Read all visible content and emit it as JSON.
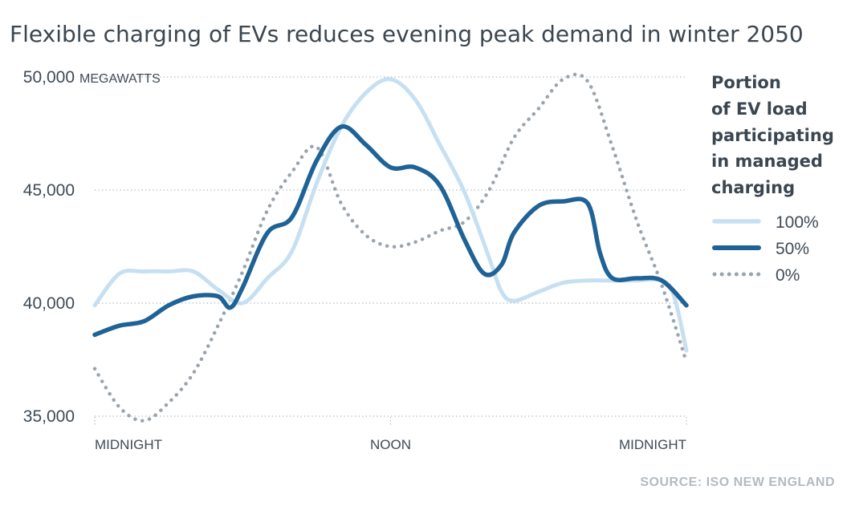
{
  "colors": {
    "series_100": "#c6e0f2",
    "series_50": "#1f6396",
    "series_0": "#9aa4ad",
    "grid": "#b8bec4",
    "text": "#3f4a55",
    "source": "#b3bac1"
  },
  "chart_data": {
    "type": "line",
    "title": "Flexible charging of EVs reduces evening peak demand in winter 2050",
    "ylabel": "",
    "y_unit": "MEGAWATTS",
    "ylim": [
      35000,
      50000
    ],
    "yticks": [
      {
        "value": 50000,
        "label": "50,000"
      },
      {
        "value": 45000,
        "label": "45,000"
      },
      {
        "value": 40000,
        "label": "40,000"
      },
      {
        "value": 35000,
        "label": "35,000"
      }
    ],
    "xlim": [
      0,
      24
    ],
    "xticks": [
      {
        "value": 0,
        "label": "MIDNIGHT"
      },
      {
        "value": 12,
        "label": "NOON"
      },
      {
        "value": 24,
        "label": "MIDNIGHT"
      }
    ],
    "grid": "horizontal dotted",
    "legend_title": "Portion of EV load participating in managed charging",
    "legend_title_lines": [
      "Portion",
      "of EV load",
      "participating",
      "in managed",
      "charging"
    ],
    "legend_position": "right",
    "series": [
      {
        "name": "100%",
        "style": "solid-light",
        "points": [
          [
            0,
            39900
          ],
          [
            1,
            41300
          ],
          [
            2,
            41400
          ],
          [
            3,
            41400
          ],
          [
            4,
            41400
          ],
          [
            5,
            40600
          ],
          [
            6,
            40000
          ],
          [
            7,
            41100
          ],
          [
            8,
            42300
          ],
          [
            9,
            45300
          ],
          [
            10,
            47800
          ],
          [
            11,
            49300
          ],
          [
            12,
            49900
          ],
          [
            13,
            49000
          ],
          [
            14,
            47000
          ],
          [
            15,
            44900
          ],
          [
            16,
            42000
          ],
          [
            16.5,
            40500
          ],
          [
            17,
            40100
          ],
          [
            18,
            40500
          ],
          [
            19,
            40900
          ],
          [
            20,
            41000
          ],
          [
            21,
            41000
          ],
          [
            22,
            41000
          ],
          [
            23,
            41000
          ],
          [
            23.5,
            40300
          ],
          [
            24,
            37900
          ]
        ]
      },
      {
        "name": "50%",
        "style": "solid-dark",
        "points": [
          [
            0,
            38600
          ],
          [
            1,
            39000
          ],
          [
            2,
            39200
          ],
          [
            3,
            39900
          ],
          [
            4,
            40300
          ],
          [
            5,
            40300
          ],
          [
            5.5,
            39800
          ],
          [
            6,
            40700
          ],
          [
            7,
            43100
          ],
          [
            8,
            43800
          ],
          [
            9,
            46300
          ],
          [
            10,
            47800
          ],
          [
            11,
            47000
          ],
          [
            12,
            46000
          ],
          [
            13,
            46000
          ],
          [
            14,
            45200
          ],
          [
            15,
            42800
          ],
          [
            15.8,
            41300
          ],
          [
            16.5,
            41700
          ],
          [
            17,
            43100
          ],
          [
            18,
            44300
          ],
          [
            19,
            44500
          ],
          [
            20,
            44400
          ],
          [
            20.5,
            42200
          ],
          [
            21,
            41100
          ],
          [
            22,
            41100
          ],
          [
            23,
            41000
          ],
          [
            24,
            39900
          ]
        ]
      },
      {
        "name": "0%",
        "style": "dotted",
        "points": [
          [
            0,
            37100
          ],
          [
            1,
            35400
          ],
          [
            2,
            34800
          ],
          [
            3,
            35600
          ],
          [
            4,
            36900
          ],
          [
            5,
            39000
          ],
          [
            6,
            41400
          ],
          [
            7,
            44100
          ],
          [
            8,
            45800
          ],
          [
            9,
            46900
          ],
          [
            10,
            44400
          ],
          [
            11,
            43000
          ],
          [
            12,
            42500
          ],
          [
            13,
            42700
          ],
          [
            14,
            43200
          ],
          [
            15,
            43600
          ],
          [
            16,
            45000
          ],
          [
            17,
            47300
          ],
          [
            18,
            48600
          ],
          [
            19,
            49900
          ],
          [
            20,
            49800
          ],
          [
            21,
            46900
          ],
          [
            22,
            43600
          ],
          [
            23,
            40800
          ],
          [
            24,
            37400
          ]
        ]
      }
    ]
  },
  "source": "SOURCE: ISO NEW ENGLAND"
}
